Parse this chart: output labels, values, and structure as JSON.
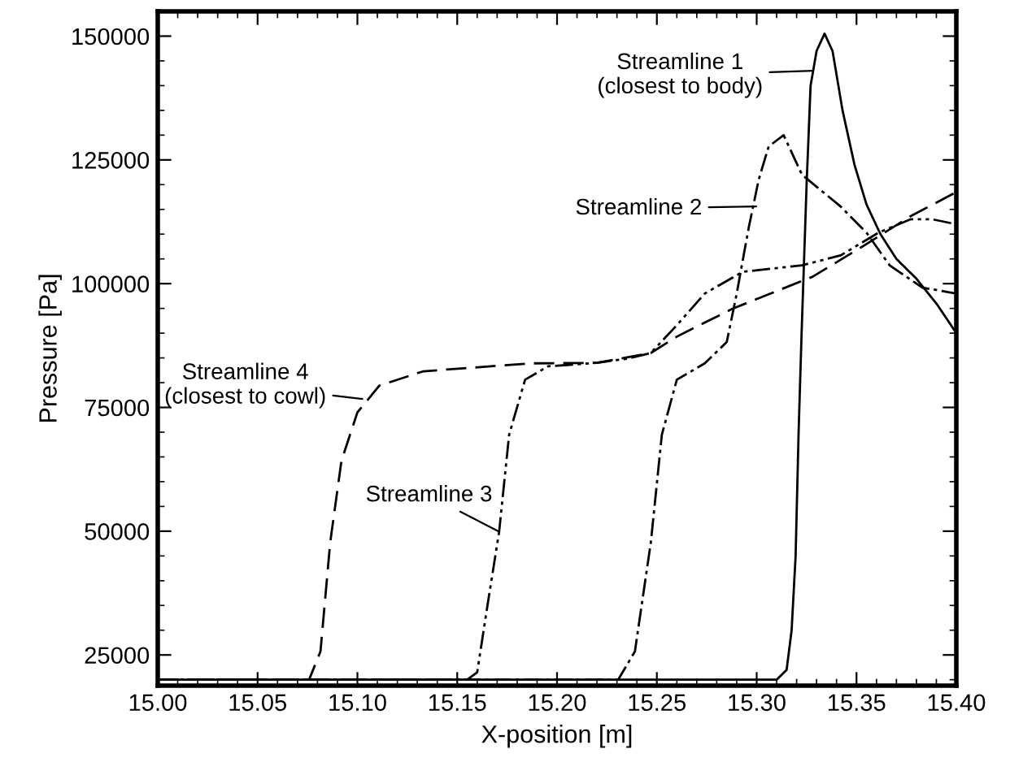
{
  "chart_data": {
    "type": "line",
    "xlabel": "X-position [m]",
    "ylabel": "Pressure [Pa]",
    "xlim": [
      15.0,
      15.4
    ],
    "ylim": [
      18800,
      155000
    ],
    "xticks": [
      {
        "value": 15.0,
        "label": "15.00"
      },
      {
        "value": 15.05,
        "label": "15.05"
      },
      {
        "value": 15.1,
        "label": "15.10"
      },
      {
        "value": 15.15,
        "label": "15.15"
      },
      {
        "value": 15.2,
        "label": "15.20"
      },
      {
        "value": 15.25,
        "label": "15.25"
      },
      {
        "value": 15.3,
        "label": "15.30"
      },
      {
        "value": 15.35,
        "label": "15.35"
      },
      {
        "value": 15.4,
        "label": "15.40"
      }
    ],
    "yticks": [
      25000,
      50000,
      75000,
      100000,
      125000,
      150000
    ],
    "grid": false,
    "legend": false,
    "marker": "none",
    "series": [
      {
        "color": "#000000",
        "line_style": "solid",
        "x": [
          15.0,
          15.31,
          15.315,
          15.3175,
          15.3195,
          15.321,
          15.3225,
          15.325,
          15.327,
          15.33,
          15.334,
          15.338,
          15.343,
          15.349,
          15.355,
          15.362,
          15.37,
          15.38,
          15.39,
          15.4
        ],
        "values": [
          20000,
          20000,
          22000,
          30000,
          45000,
          70000,
          90000,
          120000,
          140000,
          147000,
          150500,
          147000,
          135000,
          124000,
          116000,
          110000,
          105000,
          101000,
          96000,
          90000
        ]
      },
      {
        "color": "#000000",
        "line_style": "dashdot",
        "x": [
          15.0,
          15.2306,
          15.239,
          15.247,
          15.2525,
          15.26,
          15.274,
          15.285,
          15.29,
          15.296,
          15.301,
          15.306,
          15.3135,
          15.3227,
          15.342,
          15.355,
          15.3666,
          15.383,
          15.4
        ],
        "values": [
          20000,
          20000,
          25700,
          47800,
          69500,
          80600,
          83900,
          88200,
          98000,
          111300,
          121000,
          127700,
          130000,
          122000,
          115600,
          110300,
          103700,
          99200,
          98000
        ]
      },
      {
        "color": "#000000",
        "line_style": "dashdotdot",
        "x": [
          15.0,
          15.155,
          15.16,
          15.165,
          15.171,
          15.176,
          15.184,
          15.1955,
          15.22,
          15.236,
          15.247,
          15.26,
          15.274,
          15.293,
          15.3227,
          15.342,
          15.361,
          15.377,
          15.388,
          15.4
        ],
        "values": [
          20000,
          20000,
          21500,
          34600,
          49900,
          69500,
          80600,
          83300,
          84000,
          84900,
          86000,
          91600,
          98000,
          102400,
          103700,
          105700,
          110300,
          113000,
          113000,
          112000
        ]
      },
      {
        "color": "#000000",
        "line_style": "dashed",
        "x": [
          15.0,
          15.0758,
          15.0815,
          15.0864,
          15.092,
          15.1,
          15.111,
          15.133,
          15.187,
          15.22,
          15.247,
          15.26,
          15.2877,
          15.328,
          15.355,
          15.377,
          15.4
        ],
        "values": [
          20000,
          20000,
          25700,
          47800,
          64200,
          74000,
          79400,
          82300,
          83900,
          84000,
          86000,
          89300,
          94900,
          101400,
          108000,
          113600,
          118500
        ]
      }
    ],
    "annotations": [
      {
        "text": "Streamline 1\n(closest to body)",
        "x": 15.328,
        "y": 143000
      },
      {
        "text": "Streamline 2",
        "x": 15.2998,
        "y": 115600
      },
      {
        "text": "Streamline 3",
        "x": 15.171,
        "y": 49900
      },
      {
        "text": "Streamline 4\n(closest to cowl)",
        "x": 15.1025,
        "y": 76700
      }
    ]
  }
}
